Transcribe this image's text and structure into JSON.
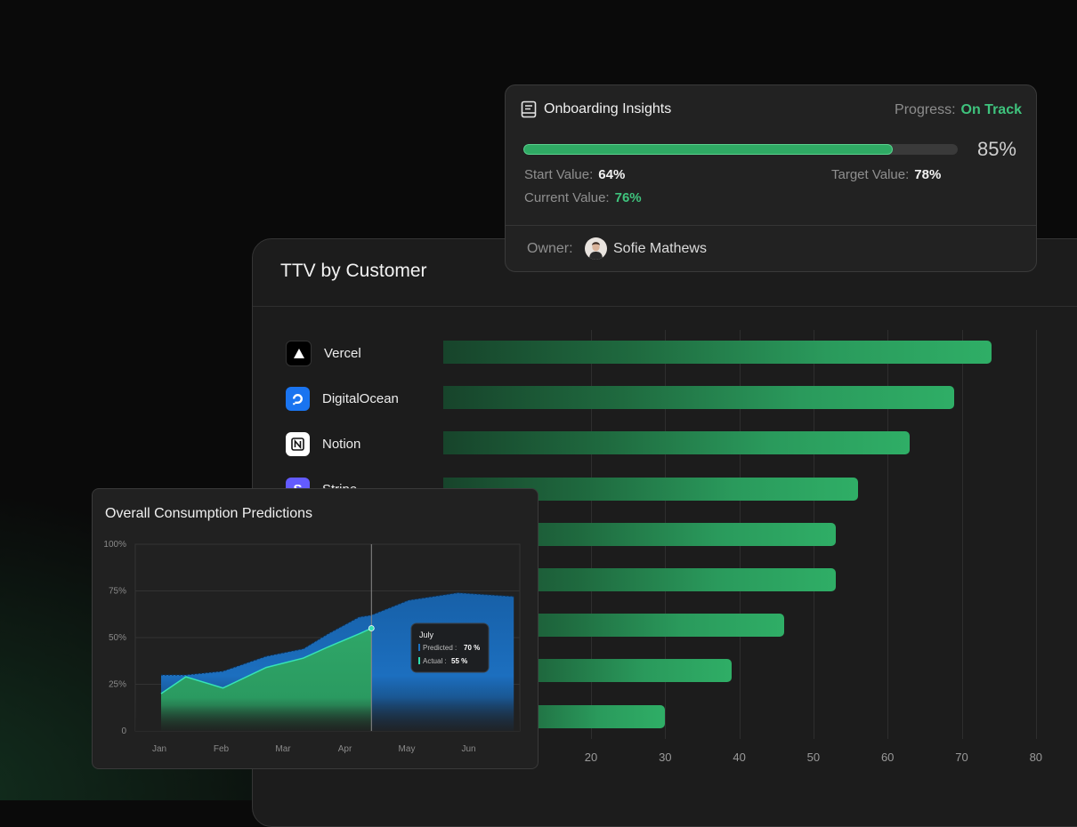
{
  "ttv": {
    "title": "TTV by Customer",
    "x_ticks": [
      "20",
      "30",
      "40",
      "50",
      "60",
      "70",
      "80"
    ],
    "customers": [
      {
        "name": "Vercel",
        "icon": "vercel-triangle-icon",
        "logo_bg": "#000000"
      },
      {
        "name": "DigitalOcean",
        "icon": "digitalocean-icon",
        "logo_bg": "#1a74f0"
      },
      {
        "name": "Notion",
        "icon": "notion-icon",
        "logo_bg": "#ffffff"
      },
      {
        "name": "Stripe",
        "icon": "stripe-icon",
        "logo_bg": "#635bff"
      }
    ],
    "chart_data": {
      "type": "bar",
      "orientation": "horizontal",
      "title": "TTV by Customer",
      "categories": [
        "Vercel",
        "DigitalOcean",
        "Notion",
        "Stripe",
        "",
        "",
        "",
        "",
        ""
      ],
      "values": [
        74,
        69,
        63,
        56,
        53,
        53,
        46,
        39,
        30
      ],
      "xlim": [
        0,
        80
      ]
    }
  },
  "insights": {
    "title": "Onboarding Insights",
    "progress_label": "Progress:",
    "progress_status": "On Track",
    "progress_value": 0.85,
    "progress_percent": "85%",
    "start_label": "Start Value:",
    "start_value": "64%",
    "target_label": "Target Value:",
    "target_value": "78%",
    "current_label": "Current Value:",
    "current_value": "76%",
    "owner_label": "Owner:",
    "owner_name": "Sofie Mathews",
    "accent": "#3fc37d"
  },
  "consumption": {
    "title": "Overall Consumption Predictions",
    "tooltip": {
      "month": "July",
      "predicted_label": "Predicted :",
      "predicted_value": "70 %",
      "actual_label": "Actual :",
      "actual_value": "55 %"
    },
    "chart_data": {
      "type": "area",
      "title": "Overall Consumption Predictions",
      "x": [
        "Jan",
        "Feb",
        "Mar",
        "Apr",
        "May",
        "Jun"
      ],
      "y_ticks": [
        "100%",
        "75%",
        "50%",
        "25%",
        "0"
      ],
      "ylim": [
        0,
        100
      ],
      "series": [
        {
          "name": "Predicted",
          "points": [
            [
              0,
              30
            ],
            [
              0.4,
              30
            ],
            [
              1.0,
              32
            ],
            [
              1.7,
              40
            ],
            [
              2.3,
              44
            ],
            [
              2.7,
              52
            ],
            [
              3.2,
              61
            ],
            [
              3.4,
              62
            ],
            [
              4.0,
              70
            ],
            [
              4.8,
              74
            ],
            [
              5.7,
              72
            ]
          ]
        },
        {
          "name": "Actual",
          "points": [
            [
              0,
              20
            ],
            [
              0.4,
              29
            ],
            [
              1.0,
              23
            ],
            [
              1.7,
              34
            ],
            [
              2.3,
              39
            ],
            [
              2.7,
              45
            ],
            [
              3.2,
              52
            ],
            [
              3.4,
              55
            ]
          ]
        }
      ]
    }
  }
}
